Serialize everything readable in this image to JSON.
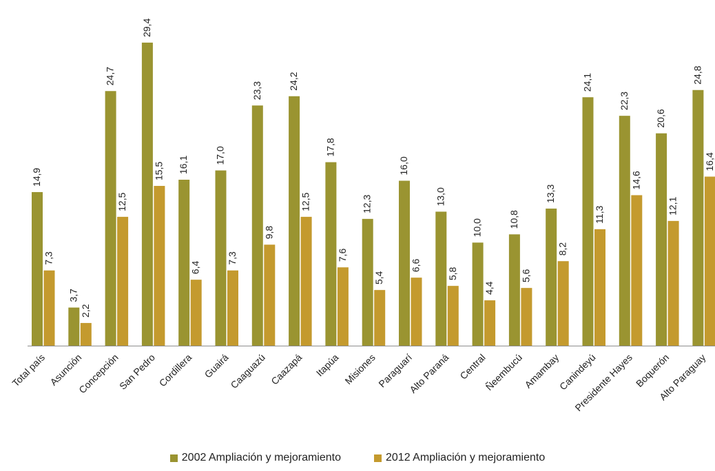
{
  "chart_data": {
    "type": "bar",
    "categories": [
      "Total país",
      "Asunción",
      "Concepción",
      "San Pedro",
      "Cordillera",
      "Guairá",
      "Caaguazú",
      "Caazapá",
      "Itapúa",
      "Misiones",
      "Paraguarí",
      "Alto Paraná",
      "Central",
      "Ñeembucú",
      "Amambay",
      "Canindeyú",
      "Presidente Hayes",
      "Boquerón",
      "Alto Paraguay"
    ],
    "series": [
      {
        "name": "2002 Ampliación y mejoramiento",
        "color": "#9a9431",
        "values": [
          14.9,
          3.7,
          24.7,
          29.4,
          16.1,
          17.0,
          23.3,
          24.2,
          17.8,
          12.3,
          16.0,
          13.0,
          10.0,
          10.8,
          13.3,
          24.1,
          22.3,
          20.6,
          24.8
        ],
        "labels": [
          "14,9",
          "3,7",
          "24,7",
          "29,4",
          "16,1",
          "17,0",
          "23,3",
          "24,2",
          "17,8",
          "12,3",
          "16,0",
          "13,0",
          "10,0",
          "10,8",
          "13,3",
          "24,1",
          "22,3",
          "20,6",
          "24,8"
        ]
      },
      {
        "name": "2012 Ampliación y mejoramiento",
        "color": "#c49a2e",
        "values": [
          7.3,
          2.2,
          12.5,
          15.5,
          6.4,
          7.3,
          9.8,
          12.5,
          7.6,
          5.4,
          6.6,
          5.8,
          4.4,
          5.6,
          8.2,
          11.3,
          14.6,
          12.1,
          16.4
        ],
        "labels": [
          "7,3",
          "2,2",
          "12,5",
          "15,5",
          "6,4",
          "7,3",
          "9,8",
          "12,5",
          "7,6",
          "5,4",
          "6,6",
          "5,8",
          "4,4",
          "5,6",
          "8,2",
          "11,3",
          "14,6",
          "12,1",
          "16,4"
        ]
      }
    ],
    "ylim": [
      0,
      30
    ],
    "grid": false,
    "legend_position": "bottom"
  }
}
